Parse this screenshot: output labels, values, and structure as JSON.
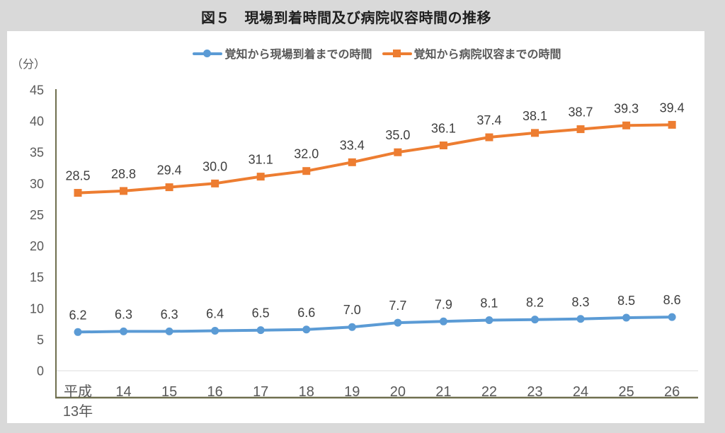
{
  "figure": {
    "title": "図５　現場到着時間及び病院収容時間の推移",
    "y_axis_unit": "（分）"
  },
  "legend": {
    "items": [
      {
        "id": "scene-arrival",
        "label": "覚知から現場到着までの時間",
        "color": "#5B9BD5",
        "marker": "circle"
      },
      {
        "id": "hospital-admission",
        "label": "覚知から病院収容までの時間",
        "color": "#ED7D31",
        "marker": "square"
      }
    ]
  },
  "chart_data": {
    "type": "line",
    "title": "図５　現場到着時間及び病院収容時間の推移",
    "categories": [
      "平成\n13年",
      "14",
      "15",
      "16",
      "17",
      "18",
      "19",
      "20",
      "21",
      "22",
      "23",
      "24",
      "25",
      "26"
    ],
    "series": [
      {
        "id": "scene-arrival",
        "name": "覚知から現場到着までの時間",
        "color": "#5B9BD5",
        "marker": "circle",
        "values": [
          6.2,
          6.3,
          6.3,
          6.4,
          6.5,
          6.6,
          7.0,
          7.7,
          7.9,
          8.1,
          8.2,
          8.3,
          8.5,
          8.6
        ]
      },
      {
        "id": "hospital-admission",
        "name": "覚知から病院収容までの時間",
        "color": "#ED7D31",
        "marker": "square",
        "values": [
          28.5,
          28.8,
          29.4,
          30.0,
          31.1,
          32.0,
          33.4,
          35.0,
          36.1,
          37.4,
          38.1,
          38.7,
          39.3,
          39.4
        ]
      }
    ],
    "xlabel": "",
    "ylabel": "（分）",
    "ylim": [
      0,
      45
    ],
    "ytick_step": 5,
    "grid": "zero-line-only",
    "legend_position": "top",
    "data_labels": "one-decimal, above points"
  },
  "colors": {
    "series_scene_arrival": "#5B9BD5",
    "series_hospital_admission": "#ED7D31",
    "axis_line": "#6F6F4F",
    "zero_gridline": "#DCDCDC",
    "tick_text": "#595959",
    "data_label_text": "#3F3F3F",
    "title_text": "#1F1F1F",
    "page_background": "#D9D9D9",
    "panel_background": "#FFFFFF"
  }
}
